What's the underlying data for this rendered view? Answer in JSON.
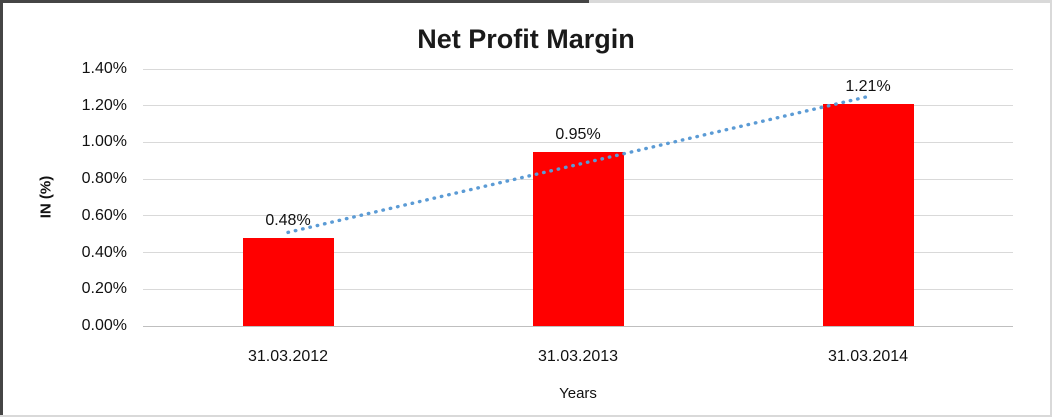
{
  "chart_data": {
    "type": "bar",
    "title": "Net Profit Margin",
    "xlabel": "Years",
    "ylabel": "IN (%)",
    "categories": [
      "31.03.2012",
      "31.03.2013",
      "31.03.2014"
    ],
    "values": [
      0.48,
      0.95,
      1.21
    ],
    "data_labels": [
      "0.48%",
      "0.95%",
      "1.21%"
    ],
    "ylim": [
      0,
      1.4
    ],
    "ytick_step": 0.2,
    "ytick_labels": [
      "0.00%",
      "0.20%",
      "0.40%",
      "0.60%",
      "0.80%",
      "1.00%",
      "1.20%",
      "1.40%"
    ],
    "grid": true,
    "legend": "none",
    "bar_color": "#FF0000",
    "gridline_color": "#D9D9D9",
    "axis_line_color": "#BFBFBF",
    "trendline": {
      "type": "linear",
      "style": "dotted",
      "color": "#5B9BD5",
      "start_value": 0.51,
      "end_value": 1.25
    }
  }
}
